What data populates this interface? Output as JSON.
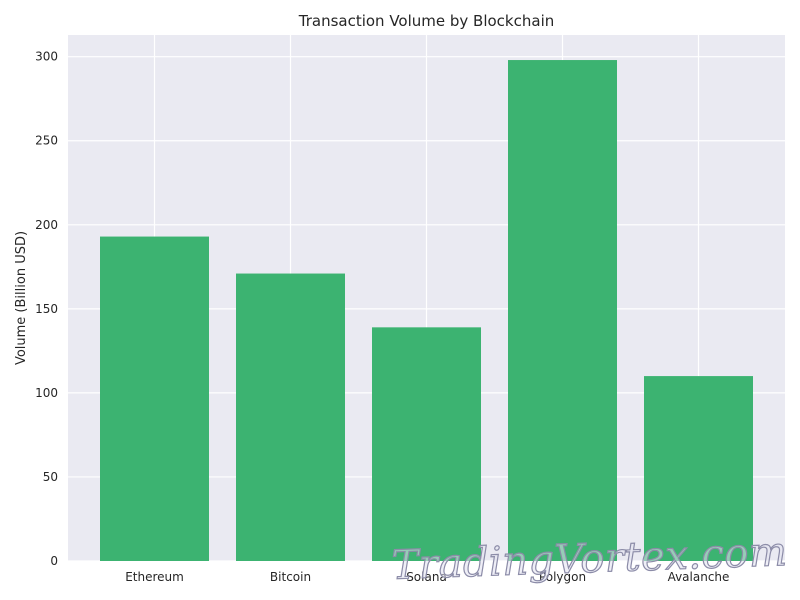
{
  "colors": {
    "background": "#eaeaf2",
    "grid": "#ffffff",
    "bar": "#3cb371",
    "text": "#262626"
  },
  "watermark": {
    "text": "TradingVortex.com"
  },
  "chart_data": {
    "type": "bar",
    "title": "Transaction Volume by Blockchain",
    "xlabel": "",
    "ylabel": "Volume (Billion USD)",
    "categories": [
      "Ethereum",
      "Bitcoin",
      "Solana",
      "Polygon",
      "Avalanche"
    ],
    "values": [
      193,
      171,
      139,
      298,
      110
    ],
    "ylim": [
      0,
      312.9
    ],
    "yticks": [
      0,
      50,
      100,
      150,
      200,
      250,
      300
    ],
    "grid": true,
    "legend": "none"
  }
}
